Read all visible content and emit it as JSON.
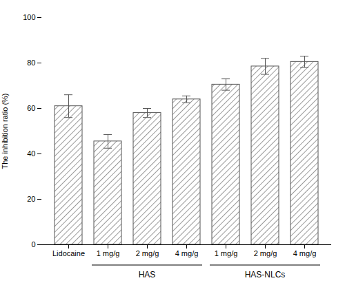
{
  "chart_data": {
    "type": "bar",
    "categories": [
      "Lidocaine",
      "1 mg/g",
      "2 mg/g",
      "4 mg/g",
      "1 mg/g",
      "2 mg/g",
      "4 mg/g"
    ],
    "values": [
      61.0,
      45.5,
      58.0,
      64.0,
      70.5,
      78.5,
      80.5
    ],
    "errors": [
      5.0,
      3.0,
      2.0,
      1.5,
      2.5,
      3.5,
      2.5
    ],
    "ylabel": "The inhibition ratio (%)",
    "ylim": [
      0,
      100
    ],
    "yticks": [
      0,
      20,
      40,
      60,
      80,
      100
    ],
    "color": "#555555",
    "grid": false,
    "groups": [
      {
        "label": "HAS",
        "from": 1,
        "to": 3
      },
      {
        "label": "HAS-NLCs",
        "from": 4,
        "to": 6
      }
    ]
  }
}
